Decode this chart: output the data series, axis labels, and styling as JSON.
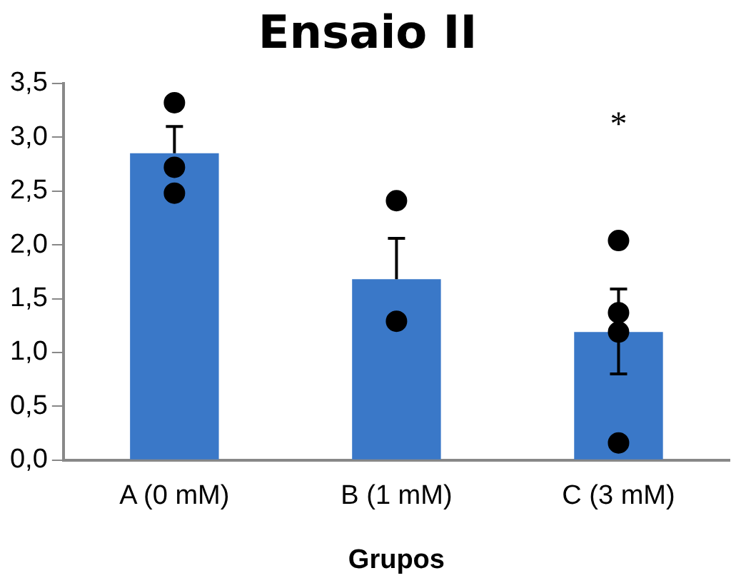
{
  "chart_data": {
    "type": "bar",
    "title": "Ensaio II",
    "xlabel": "Grupos",
    "categories": [
      "A (0 mM)",
      "B (1 mM)",
      "C (3 mM)"
    ],
    "series": [
      {
        "color": "#3a78c8",
        "values": [
          2.85,
          1.68,
          1.19
        ],
        "errors": [
          [
            2.85,
            3.1
          ],
          [
            1.68,
            2.06
          ],
          [
            0.8,
            1.59
          ]
        ]
      },
      {
        "type": "scatter",
        "color": "#000000",
        "x": [
          "A (0 mM)",
          "A (0 mM)",
          "A (0 mM)",
          "B (1 mM)",
          "B (1 mM)",
          "C (3 mM)",
          "C (3 mM)",
          "C (3 mM)",
          "C (3 mM)"
        ],
        "values": [
          3.32,
          2.72,
          2.48,
          2.41,
          1.29,
          2.04,
          1.37,
          1.19,
          0.16
        ]
      }
    ],
    "annotations": [
      "*"
    ],
    "ylim": [
      0,
      3.5
    ],
    "yticks": [
      {
        "value": 0,
        "label": "0,0"
      },
      {
        "value": 0.5,
        "label": "0,5"
      },
      {
        "value": 1,
        "label": "1,0"
      },
      {
        "value": 1.5,
        "label": "1,5"
      },
      {
        "value": 2,
        "label": "2,0"
      },
      {
        "value": 2.5,
        "label": "2,5"
      },
      {
        "value": 3,
        "label": "3,0"
      },
      {
        "value": 3.5,
        "label": "3,5"
      }
    ],
    "grid": false,
    "legend": false,
    "marker": "circle"
  }
}
